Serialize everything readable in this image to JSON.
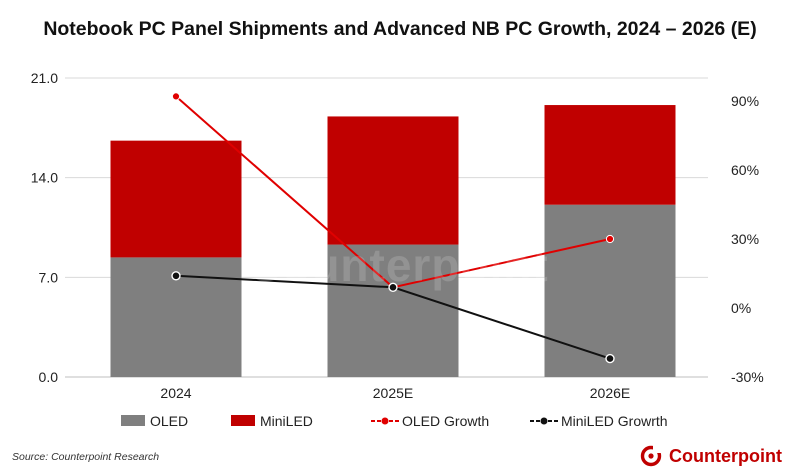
{
  "title": "Notebook PC Panel Shipments and Advanced NB PC Growth, 2024 – 2026 (E)",
  "source": "Source: Counterpoint Research",
  "brand": "Counterpoint",
  "chart_data": {
    "type": "bar",
    "stacked": true,
    "title": "Notebook PC Panel Shipments and Advanced NB PC Growth, 2024 – 2026 (E)",
    "categories": [
      "2024",
      "2025E",
      "2026E"
    ],
    "series": [
      {
        "name": "OLED",
        "type": "bar",
        "axis": "left",
        "color": "#7f7f7f",
        "values": [
          8.4,
          9.3,
          12.1
        ]
      },
      {
        "name": "MiniLED",
        "type": "bar",
        "axis": "left",
        "color": "#c00000",
        "values": [
          8.2,
          9.0,
          7.0
        ]
      },
      {
        "name": "OLED Growth",
        "type": "line",
        "axis": "right",
        "unit": "%",
        "color": "#e00000",
        "values": [
          92,
          9,
          30
        ]
      },
      {
        "name": "MiniLED Growrth",
        "type": "line",
        "axis": "right",
        "unit": "%",
        "color": "#111111",
        "values": [
          14,
          9,
          -22
        ]
      }
    ],
    "y_left": {
      "min": 0,
      "max": 21,
      "ticks": [
        "0.0",
        "7.0",
        "14.0",
        "21.0"
      ]
    },
    "y_right": {
      "min": -30,
      "max": 105,
      "ticks": [
        "-30%",
        "0%",
        "30%",
        "60%",
        "90%"
      ]
    },
    "grid": true,
    "legend_position": "bottom"
  }
}
